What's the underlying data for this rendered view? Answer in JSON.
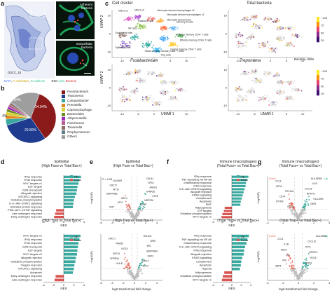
{
  "panel_letters": {
    "a": "a",
    "b": "b",
    "c": "c",
    "d": "d",
    "e": "e",
    "f": "f",
    "g": "g"
  },
  "panel_a": {
    "sample_label": "OSCC_18",
    "adherent_label": "Adherent bacteria",
    "intracellular_label": "Intracellular bacteria",
    "legend": {
      "dapi": "DAPI",
      "fuso": "F. nucleatum",
      "ecad": "E-cadherin",
      "dna": "DNA",
      "actin": "Actin",
      "bacteria": "Bacteria"
    },
    "colors": {
      "dapi": "#3b6cff",
      "fuso": "#e0b000",
      "ecad": "#2ec48a",
      "dna": "#3b6cff",
      "actin": "#2ec48a",
      "bacteria": "#e03030"
    }
  },
  "panel_b": {
    "chart_data": {
      "type": "pie",
      "slices": [
        {
          "name": "Fusobacterium",
          "value": 34.94,
          "color": "#8b1a1a"
        },
        {
          "name": "Treponema",
          "value": 29.8,
          "color": "#1f3b8f"
        },
        {
          "name": "Campylobacter",
          "value": 4,
          "color": "#3aa7a0"
        },
        {
          "name": "Prevotella",
          "value": 2.5,
          "color": "#e08a1e"
        },
        {
          "name": "Capnocytophaga",
          "value": 2.3,
          "color": "#d6cf38"
        },
        {
          "name": "Bacteroides",
          "value": 1.8,
          "color": "#6b8e23"
        },
        {
          "name": "Alloprevotella",
          "value": 1.6,
          "color": "#9c27b0"
        },
        {
          "name": "Parvimonas",
          "value": 1.5,
          "color": "#b25b8a"
        },
        {
          "name": "Tannerella",
          "value": 1.4,
          "color": "#8d6e63"
        },
        {
          "name": "Porphyromonas",
          "value": 0.6,
          "color": "#607d8b"
        },
        {
          "name": "Others",
          "value": 19.84,
          "color": "#9e9e9e"
        }
      ],
      "labels": {
        "fuso": "34.94%",
        "trep": "29.80%",
        "others": "19.84%",
        "small": "4%"
      }
    }
  },
  "panel_c": {
    "cluster_title": "Cell cluster",
    "total_title": "Total bacteria",
    "fuso_title": "Fusobacterium",
    "trep_title": "Treponema",
    "xlabel": "UMAP 1",
    "ylabel": "UMAP 2",
    "x_ticks": [
      "-10",
      "-5",
      "0",
      "5",
      "10"
    ],
    "y_ticks": [
      "10",
      "0",
      "-10"
    ],
    "cbar_title": "Bacteria UMIs",
    "cbar_top": [
      "~100",
      "75",
      "50",
      "25"
    ],
    "cbar_mid": [
      "~100",
      "75",
      "50",
      "25"
    ],
    "cluster_labels": [
      "MSCs v1",
      "MSCs v2",
      "Monocyte-derived macrophages v2",
      "Monocyte-derived macrophages v1",
      "Plasma B cells",
      "Monocyte-derived DCs",
      "Memory B cells",
      "NK cells",
      "Endothelial cells",
      "Effector memory CD4+ T cells",
      "Effector memory CD8+ T cells",
      "Epithelial cells",
      "Tissue-resident memory CD8+ T cells",
      "Central memory CD4+ T cells",
      "Treg cells"
    ]
  },
  "panel_d": {
    "title1": "Epithelial",
    "subtitle1": "(High Fuso vs Total Bac+)",
    "title2": "(High Trep vs Total Bac+)",
    "xlabel": "NES",
    "x_ticks": [
      "-4",
      "-2",
      "0",
      "2",
      "4"
    ],
    "legend_up": "Up",
    "legend_down": "Down",
    "colors": {
      "up": "#3aa99f",
      "down": "#d9534f"
    },
    "chart_data": [
      {
        "type": "bar",
        "title": "High Fuso vs Total Bac+",
        "categories": [
          "IFNγ response",
          "IFNα response",
          "MYC targets v1",
          "E2F targets",
          "G2M checkpoint",
          "Allograft rejection",
          "MTORC1 signalling",
          "Oxidative phosphorylation",
          "IL-6–JAK–STAT3 signalling",
          "Unfolded protein response",
          "PI3K–AKT–mTOR signalling",
          "Late oestrogen response",
          "Early oestrogen response"
        ],
        "values": [
          3.4,
          3.1,
          2.9,
          2.7,
          2.6,
          2.5,
          2.2,
          2.0,
          1.9,
          1.8,
          -1.5,
          -1.7,
          -1.9
        ],
        "xlim": [
          -4,
          4
        ]
      },
      {
        "type": "bar",
        "title": "High Trep vs Total Bac+",
        "categories": [
          "MYC targets v1",
          "IFNγ response",
          "IFNα response",
          "G2M checkpoint",
          "E2F targets",
          "MYC targets v2",
          "Allograft rejection",
          "Oxidative phosphorylation",
          "Oxygen response",
          "MTORC1 signalling",
          "Apoptosis",
          "Early oestrogen response",
          "Late oestrogen response"
        ],
        "values": [
          3.3,
          3.1,
          2.9,
          2.8,
          2.7,
          2.6,
          2.4,
          2.3,
          2.1,
          2.0,
          1.8,
          -1.6,
          -1.8
        ],
        "xlim": [
          -4,
          4
        ]
      }
    ]
  },
  "panel_e": {
    "title1": "Epithelial",
    "subtitle1": "(High Fuso vs Total Bac+)",
    "subtitle2": "(High Trep vs Total Bac+)",
    "ylabel": "−log10(P)",
    "xlabel": "log2-transformed fold change",
    "x_ticks": [
      "-6",
      "-4",
      "-2",
      "0",
      "2",
      "4"
    ],
    "pline": "P < 0.05",
    "genes_top": [
      "CALB1",
      "DUXAP8",
      "GPX2",
      "CRCT1",
      "ANXA1",
      "MT1X",
      "SPRR2E",
      "SERPINB3",
      "CSTB",
      "KRT4",
      "MRPS26",
      "ATF4",
      "TXNIP",
      "IFI27"
    ],
    "genes_bot": [
      "RSL1D1",
      "CRCT1",
      "WRS",
      "FAM3D",
      "IFI6",
      "ISG15",
      "SERPINB4",
      "KRT16",
      "DKK3",
      "SPRR2A",
      "KRT13",
      "HLA-B",
      "BST2"
    ]
  },
  "panel_f": {
    "title1": "Immune (macrophages)",
    "subtitle1": "(Total Fuso+ vs Total Bac+)",
    "subtitle2": "(Total Trep+ vs Total Bac+)",
    "xlabel": "NES",
    "x_ticks": [
      "-4",
      "-2",
      "0",
      "2",
      "4"
    ],
    "legend_up": "Up",
    "legend_down": "Down",
    "colors": {
      "up": "#3aa99f",
      "down": "#d9534f"
    },
    "chart_data": [
      {
        "type": "bar",
        "title": "Total Fuso+ vs Total Bac+",
        "categories": [
          "IFNγ response",
          "TNF signalling via NF-κB",
          "Inflammatory response",
          "IFNα response",
          "IL6–JAK–STAT3 signalling",
          "Allograft rejection",
          "KRAS signalling",
          "Complement",
          "Apoptosis",
          "EMT",
          "Adipogenesis",
          "E2F targets",
          "Oxidative phosphorylation",
          "MYC targets v1"
        ],
        "values": [
          3.5,
          3.2,
          3.0,
          2.9,
          2.7,
          2.5,
          2.3,
          2.1,
          1.9,
          1.8,
          -1.5,
          -1.7,
          -2.0,
          -2.2
        ],
        "xlim": [
          -4,
          4
        ]
      },
      {
        "type": "bar",
        "title": "Total Trep+ vs Total Bac+",
        "categories": [
          "IFNγ response",
          "TNF signalling via NF-κB",
          "Inflammatory response",
          "IL6–JAK–STAT3 signalling",
          "IFNα response",
          "Allograft rejection",
          "KRAS signalling",
          "Complement",
          "Apoptosis",
          "Hypoxia",
          "Adipogenesis",
          "Oxidative phosphorylation",
          "MYC targets v1"
        ],
        "values": [
          3.6,
          3.3,
          3.1,
          2.8,
          2.6,
          2.5,
          2.2,
          2.0,
          1.9,
          1.7,
          -1.6,
          -1.9,
          -2.1
        ],
        "xlim": [
          -4,
          4
        ]
      }
    ]
  },
  "panel_g": {
    "title1": "Immune (macrophages)",
    "subtitle1": "(Total Fuso+ vs Total Bac+)",
    "subtitle2": "(Total Trep+ vs Total Bac+)",
    "ylabel": "−log10(P)",
    "xlabel": "log2-transformed fold change",
    "x_ticks": [
      "-4",
      "-2",
      "0",
      "2",
      "4"
    ],
    "legend_down": "Down",
    "legend_up": "Up",
    "genes_top": [
      "HLA-DRB5",
      "CCL3",
      "IL1B",
      "MT2A",
      "CXCL8",
      "RPL10A",
      "RPS4Y1",
      "CD74",
      "HLA-DRA",
      "IFITM3",
      "GBP1",
      "ISG15"
    ],
    "genes_bot": [
      "HLA-DRB5",
      "CCL4",
      "CXCL10",
      "IL1B",
      "IFIT1",
      "SOD2",
      "RPS4Y1",
      "LYZ",
      "ISG15",
      "IFI6",
      "MT1X",
      "GBP5"
    ]
  }
}
